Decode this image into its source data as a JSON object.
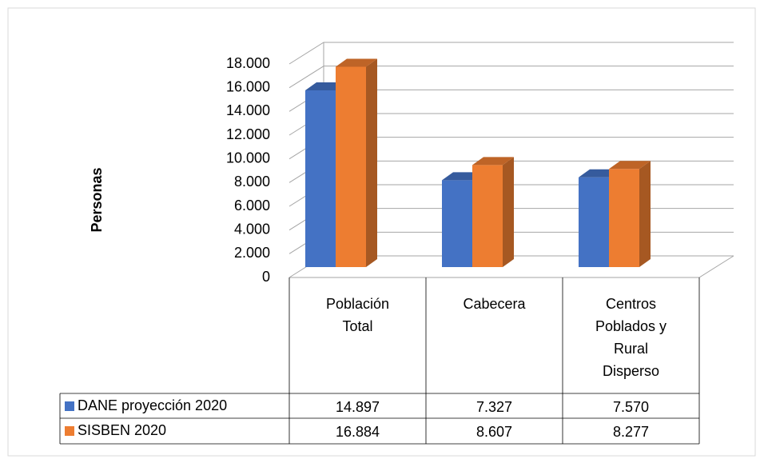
{
  "chart_data": {
    "type": "bar",
    "y_label": "Personas",
    "categories": [
      "Población Total",
      "Cabecera",
      "Centros Poblados y Rural Disperso"
    ],
    "series": [
      {
        "name": "DANE proyección 2020",
        "color": "#4472c4",
        "values": [
          14897,
          7327,
          7570
        ],
        "value_labels": [
          "14.897",
          "7.327",
          "7.570"
        ]
      },
      {
        "name": "SISBEN 2020",
        "color": "#ed7d31",
        "values": [
          16884,
          8607,
          8277
        ],
        "value_labels": [
          "16.884",
          "8.607",
          "8.277"
        ]
      }
    ],
    "ylim": [
      0,
      18000
    ],
    "yticks": [
      0,
      {
        "value": 2000,
        "label": "2.000"
      },
      {
        "value": 4000,
        "label": "4.000"
      },
      {
        "value": 6000,
        "label": "6.000"
      },
      {
        "value": 8000,
        "label": "8.000"
      },
      {
        "value": 10000,
        "label": "10.000"
      },
      {
        "value": 12000,
        "label": "12.000"
      },
      {
        "value": 14000,
        "label": "14.000"
      },
      {
        "value": 16000,
        "label": "16.000"
      },
      {
        "value": 18000,
        "label": "18.000"
      }
    ],
    "grid": true
  }
}
